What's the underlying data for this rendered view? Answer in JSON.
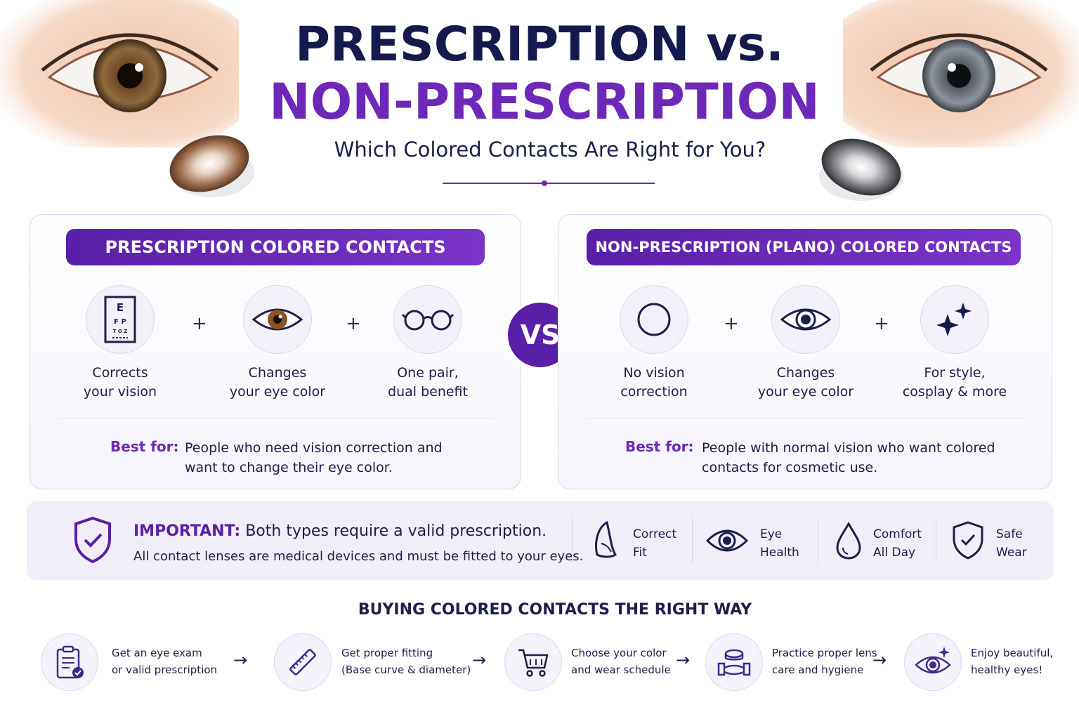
{
  "header": {
    "title_line1": "PRESCRIPTION vs.",
    "title_line2": "NON-PRESCRIPTION",
    "subtitle": "Which Colored Contacts Are Right for You?"
  },
  "colors": {
    "accent": "#6d28b9",
    "navy": "#141a4d",
    "panel_border": "#dcd6ee"
  },
  "prescription": {
    "header": "PRESCRIPTION COLORED CONTACTS",
    "features": [
      {
        "icon": "eye-chart-icon",
        "label": "Corrects\nyour vision"
      },
      {
        "icon": "brown-eye-icon",
        "label": "Changes\nyour eye color"
      },
      {
        "icon": "glasses-icon",
        "label": "One pair,\ndual benefit"
      }
    ],
    "best_for_label": "Best for:",
    "best_for_text": "People who need vision correction and want to change their eye color."
  },
  "vs_label": "VS",
  "non_prescription": {
    "header": "NON-PRESCRIPTION (PLANO) COLORED CONTACTS",
    "features": [
      {
        "icon": "empty-circle-icon",
        "label": "No vision\ncorrection"
      },
      {
        "icon": "eye-icon",
        "label": "Changes\nyour eye color"
      },
      {
        "icon": "sparkles-icon",
        "label": "For style,\ncosplay & more"
      }
    ],
    "best_for_label": "Best for:",
    "best_for_text": "People with normal vision who want colored contacts for cosmetic use."
  },
  "plus": "+",
  "important": {
    "label": "IMPORTANT:",
    "title": "Both types require a valid prescription.",
    "subtitle": "All contact lenses are medical devices and must be fitted to your eyes.",
    "items": [
      {
        "icon": "lens-fit-icon",
        "label": "Correct\nFit"
      },
      {
        "icon": "eye-health-icon",
        "label": "Eye\nHealth"
      },
      {
        "icon": "droplet-icon",
        "label": "Comfort\nAll Day"
      },
      {
        "icon": "shield-check-icon",
        "label": "Safe\nWear"
      }
    ]
  },
  "steps": {
    "title": "BUYING COLORED CONTACTS THE RIGHT WAY",
    "arrow": "→",
    "items": [
      {
        "icon": "clipboard-check-icon",
        "text": "Get an eye exam\nor valid prescription"
      },
      {
        "icon": "ruler-icon",
        "text": "Get proper fitting\n(Base curve & diameter)"
      },
      {
        "icon": "cart-icon",
        "text": "Choose your color\nand wear schedule"
      },
      {
        "icon": "lens-case-icon",
        "text": "Practice proper lens\ncare and hygiene"
      },
      {
        "icon": "sparkle-eye-icon",
        "text": "Enjoy beautiful,\nhealthy eyes!"
      }
    ]
  }
}
